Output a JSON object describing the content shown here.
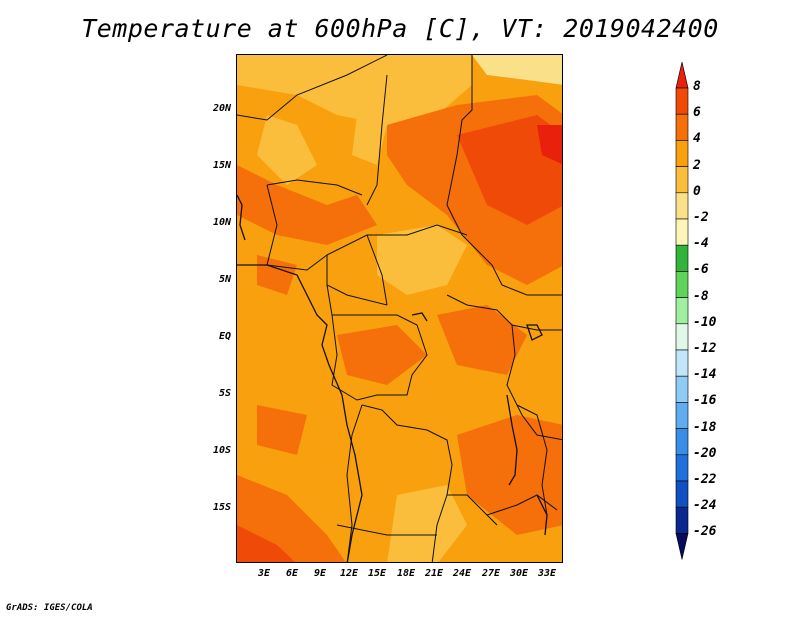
{
  "title": "Temperature at 600hPa [C], VT: 2019042400",
  "credit": "GrADS: IGES/COLA",
  "lat_labels": [
    "20N",
    "15N",
    "10N",
    "5N",
    "EQ",
    "5S",
    "10S",
    "15S"
  ],
  "lon_labels": [
    "3E",
    "6E",
    "9E",
    "12E",
    "15E",
    "18E",
    "21E",
    "24E",
    "27E",
    "30E",
    "33E"
  ],
  "colorbar": {
    "labels": [
      "8",
      "6",
      "4",
      "2",
      "0",
      "-2",
      "-4",
      "-6",
      "-8",
      "-10",
      "-12",
      "-14",
      "-16",
      "-18",
      "-20",
      "-22",
      "-24",
      "-26"
    ],
    "colors": [
      "#e8200c",
      "#f04a08",
      "#f56f0a",
      "#f8a00e",
      "#fbbe3c",
      "#fbe08a",
      "#fdf5b8",
      "#34b33b",
      "#5fd35a",
      "#a0eea0",
      "#e0f8e8",
      "#c0e6fa",
      "#8ecbf5",
      "#5fadf0",
      "#3a8ee8",
      "#2070dc",
      "#1050c0",
      "#0c2890",
      "#080c5a"
    ]
  },
  "map": {
    "fill_colors": {
      "dominant": "#f8a00e",
      "warm": "#f56f0a",
      "hot": "#e8200c",
      "cool": "#fbbe3c"
    }
  }
}
